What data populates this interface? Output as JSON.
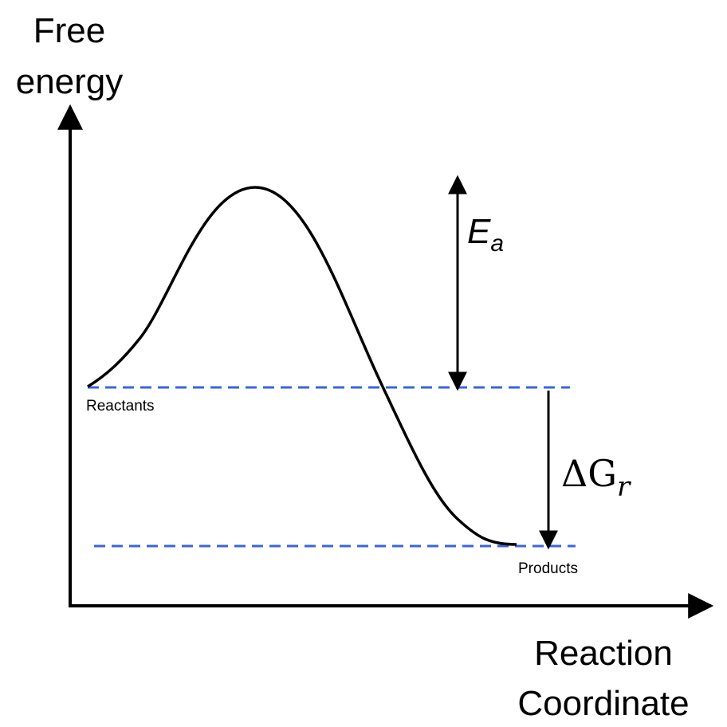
{
  "axes": {
    "y_label": [
      "Free",
      "energy"
    ],
    "x_label": [
      "Reaction",
      "Coordinate"
    ]
  },
  "levels": {
    "reactants": "Reactants",
    "products": "Products"
  },
  "annotations": {
    "activation_energy": {
      "main": "E",
      "sub": "a"
    },
    "free_energy_change": {
      "main": "ΔG",
      "sub": "r"
    }
  }
}
